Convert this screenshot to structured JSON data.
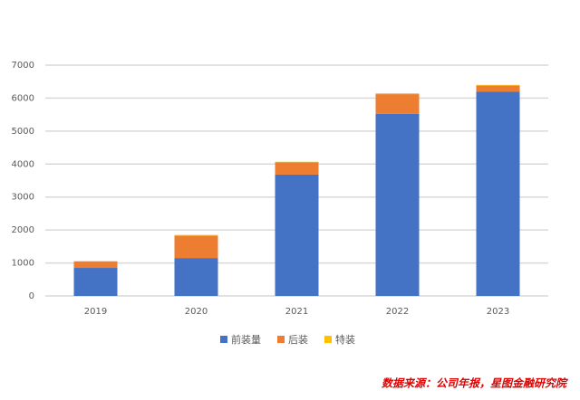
{
  "chart_data": {
    "type": "stacked_bar",
    "categories": [
      "2019",
      "2020",
      "2021",
      "2022",
      "2023"
    ],
    "series": [
      {
        "name": "前装量",
        "color": "#4472c4",
        "values": [
          850,
          1150,
          3680,
          5520,
          6200
        ]
      },
      {
        "name": "后装",
        "color": "#ed7d31",
        "values": [
          200,
          680,
          370,
          600,
          180
        ]
      },
      {
        "name": "特装",
        "color": "#ffc000",
        "values": [
          0,
          20,
          20,
          25,
          20
        ]
      }
    ],
    "ylim": [
      0,
      7000
    ],
    "yticks": [
      0,
      1000,
      2000,
      3000,
      4000,
      5000,
      6000,
      7000
    ],
    "grid": true,
    "source": "数据来源：公司年报，星图金融研究院"
  }
}
